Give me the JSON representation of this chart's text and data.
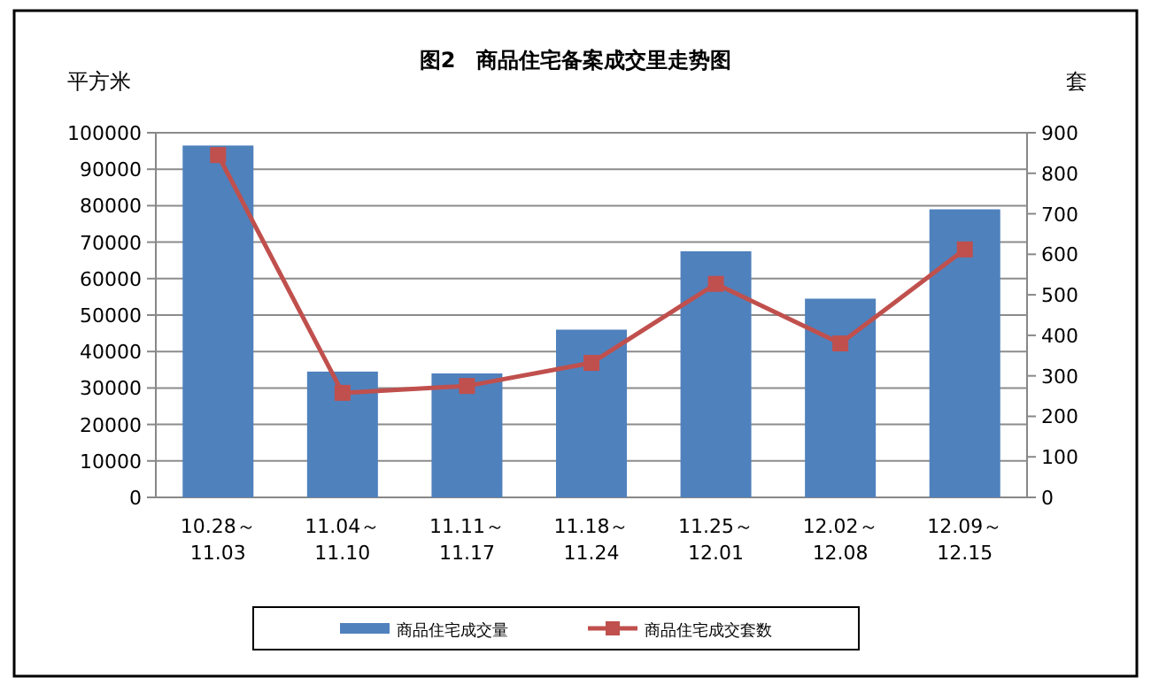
{
  "chart_data": {
    "type": "bar",
    "title": "图2　商品住宅备案成交里走势图",
    "ylabel": "平方米",
    "y2label": "套",
    "categories": [
      "10.28～\n11.03",
      "11.04～\n11.10",
      "11.11～\n11.17",
      "11.18～\n11.24",
      "11.25～\n12.01",
      "12.02～\n12.08",
      "12.09～\n12.15"
    ],
    "series": [
      {
        "name": "商品住宅成交量",
        "color": "#4f81bd",
        "values": [
          96500,
          34500,
          34000,
          46000,
          67500,
          54500,
          79000
        ]
      },
      {
        "name": "商品住宅成交套数",
        "type": "line",
        "axis": "y2",
        "color": "#c0504d",
        "marker": "square",
        "values": [
          845,
          258,
          275,
          332,
          527,
          380,
          612
        ]
      }
    ],
    "ylim": [
      0,
      100000
    ],
    "yticks": [
      0,
      10000,
      20000,
      30000,
      40000,
      50000,
      60000,
      70000,
      80000,
      90000,
      100000
    ],
    "y2lim": [
      0,
      900
    ],
    "y2ticks": [
      0,
      100,
      200,
      300,
      400,
      500,
      600,
      700,
      800,
      900
    ],
    "grid": "y",
    "legend": "bottom"
  }
}
